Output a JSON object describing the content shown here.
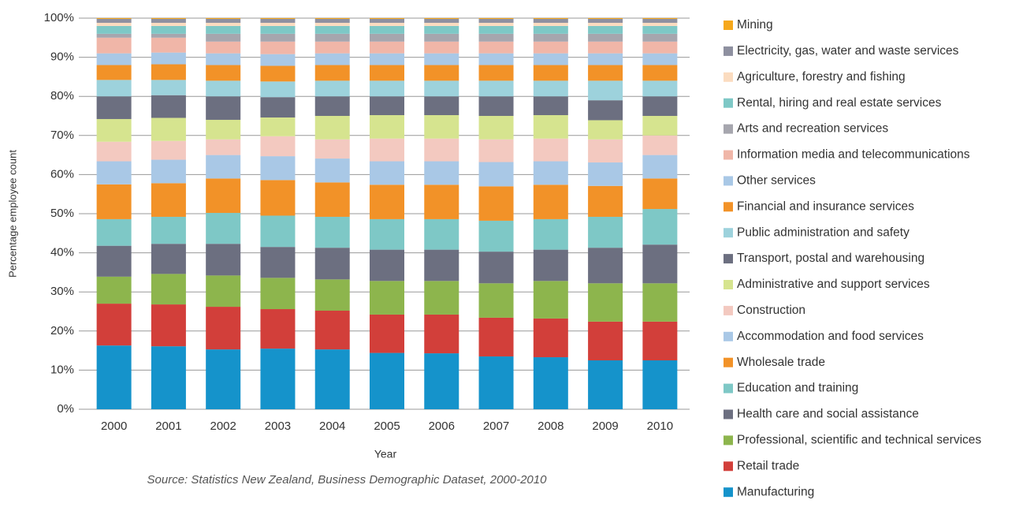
{
  "chart_data": {
    "type": "stacked_bar",
    "source": "Source: Statistics New Zealand, Business Demographic Dataset, 2000-2010",
    "x_label": "Year",
    "y_label": "Percentage employee count",
    "categories": [
      "2000",
      "2001",
      "2002",
      "2003",
      "2004",
      "2005",
      "2006",
      "2007",
      "2008",
      "2009",
      "2010"
    ],
    "ylim": [
      0,
      100
    ],
    "yticks": [
      {
        "value": 0,
        "label": "0%"
      },
      {
        "value": 10,
        "label": "10%"
      },
      {
        "value": 20,
        "label": "20%"
      },
      {
        "value": 30,
        "label": "30%"
      },
      {
        "value": 40,
        "label": "40%"
      },
      {
        "value": 50,
        "label": "50%"
      },
      {
        "value": 60,
        "label": "60%"
      },
      {
        "value": 70,
        "label": "70%"
      },
      {
        "value": 80,
        "label": "80%"
      },
      {
        "value": 90,
        "label": "90%"
      },
      {
        "value": 100,
        "label": "100%"
      }
    ],
    "grid": true,
    "legend": "right",
    "series": [
      {
        "name": "Manufacturing",
        "color": "#1593cb",
        "values": [
          16.3,
          16.1,
          15.3,
          15.5,
          15.3,
          14.4,
          14.3,
          13.5,
          13.3,
          12.5,
          12.5
        ]
      },
      {
        "name": "Retail trade",
        "color": "#d23f3a",
        "values": [
          10.7,
          10.7,
          10.9,
          10.1,
          9.9,
          9.8,
          9.9,
          9.9,
          9.9,
          9.9,
          9.9
        ]
      },
      {
        "name": "Professional, scientific and technical services",
        "color": "#8db54d",
        "values": [
          6.9,
          7.8,
          8.0,
          8.0,
          8.0,
          8.6,
          8.6,
          8.8,
          9.6,
          9.8,
          9.8
        ]
      },
      {
        "name": "Health care and social assistance",
        "color": "#6c6f80",
        "values": [
          7.9,
          7.7,
          8.1,
          7.9,
          8.1,
          8.0,
          8.0,
          8.1,
          8.0,
          9.1,
          9.9
        ]
      },
      {
        "name": "Education and training",
        "color": "#7ec8c6",
        "values": [
          6.8,
          6.9,
          7.9,
          8.0,
          7.9,
          7.8,
          7.8,
          7.9,
          7.8,
          7.9,
          9.1
        ]
      },
      {
        "name": "Wholesale trade",
        "color": "#f29228",
        "values": [
          8.9,
          8.6,
          8.8,
          9.1,
          8.8,
          8.8,
          8.8,
          8.8,
          8.8,
          7.9,
          7.8
        ]
      },
      {
        "name": "Accommodation and food services",
        "color": "#a9c8e6",
        "values": [
          5.9,
          6.0,
          6.0,
          6.1,
          6.1,
          6.0,
          6.0,
          6.2,
          6.0,
          6.0,
          6.0
        ]
      },
      {
        "name": "Construction",
        "color": "#f3c9c0",
        "values": [
          5.0,
          4.8,
          4.0,
          5.1,
          4.9,
          5.8,
          5.8,
          5.8,
          5.8,
          5.9,
          5.0
        ]
      },
      {
        "name": "Administrative and support services",
        "color": "#d6e48f",
        "values": [
          5.8,
          5.9,
          5.0,
          4.8,
          6.0,
          6.0,
          6.0,
          6.0,
          6.0,
          4.9,
          5.0
        ]
      },
      {
        "name": "Transport, postal and warehousing",
        "color": "#6c6f80",
        "values": [
          5.8,
          5.8,
          6.0,
          5.2,
          5.0,
          4.8,
          4.8,
          5.0,
          4.8,
          5.1,
          5.0
        ]
      },
      {
        "name": "Public administration and safety",
        "color": "#9dd2dc",
        "values": [
          4.2,
          3.9,
          4.0,
          4.0,
          4.0,
          4.0,
          4.0,
          4.0,
          4.0,
          5.0,
          4.0
        ]
      },
      {
        "name": "Financial and insurance services",
        "color": "#f29228",
        "values": [
          3.8,
          4.0,
          4.0,
          4.0,
          4.0,
          4.0,
          4.0,
          4.0,
          4.0,
          4.0,
          4.0
        ]
      },
      {
        "name": "Other services",
        "color": "#a9c8e6",
        "values": [
          3.0,
          3.0,
          3.0,
          3.0,
          3.0,
          3.0,
          3.0,
          3.0,
          3.0,
          3.0,
          3.0
        ]
      },
      {
        "name": "Information media and telecommunications",
        "color": "#f0b6a8",
        "values": [
          4.0,
          3.8,
          3.0,
          3.2,
          3.0,
          3.0,
          3.0,
          3.0,
          3.0,
          3.0,
          3.0
        ]
      },
      {
        "name": "Arts and recreation services",
        "color": "#a6a6ae",
        "values": [
          1.0,
          1.0,
          2.0,
          2.0,
          2.0,
          2.0,
          2.0,
          2.0,
          2.0,
          2.0,
          2.0
        ]
      },
      {
        "name": "Rental, hiring and real estate services",
        "color": "#7ec8c6",
        "values": [
          2.0,
          2.0,
          2.0,
          2.0,
          2.0,
          2.0,
          2.0,
          2.0,
          2.0,
          2.0,
          2.0
        ]
      },
      {
        "name": "Agriculture, forestry and fishing",
        "color": "#fbdcc0",
        "values": [
          0.8,
          0.8,
          0.8,
          0.8,
          0.8,
          0.8,
          0.8,
          0.8,
          0.8,
          0.8,
          0.8
        ]
      },
      {
        "name": "Electricity, gas, water and waste services",
        "color": "#8e90a0",
        "values": [
          1.0,
          1.0,
          1.0,
          1.0,
          1.0,
          1.0,
          1.0,
          1.0,
          1.0,
          1.0,
          1.0
        ]
      },
      {
        "name": "Mining",
        "color": "#f6a81c",
        "values": [
          0.2,
          0.2,
          0.2,
          0.2,
          0.2,
          0.2,
          0.2,
          0.2,
          0.2,
          0.2,
          0.2
        ]
      }
    ]
  }
}
